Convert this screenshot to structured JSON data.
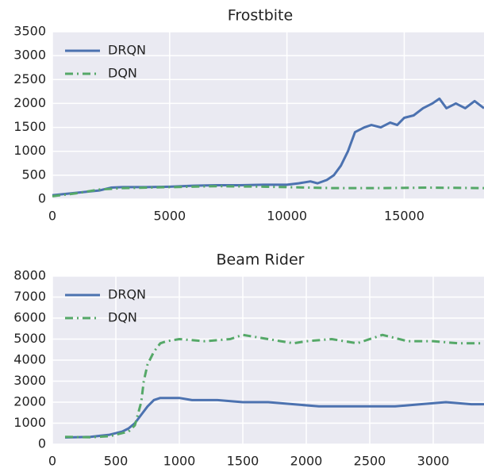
{
  "chart_data": [
    {
      "type": "line",
      "title": "Frostbite",
      "legend": "upper left",
      "grid": true,
      "xlim": [
        0,
        18400
      ],
      "ylim": [
        0,
        3500
      ],
      "xticks": [
        0,
        5000,
        10000,
        15000
      ],
      "yticks": [
        0,
        500,
        1000,
        1500,
        2000,
        2500,
        3000,
        3500
      ],
      "series": [
        {
          "name": "DRQN",
          "color": "#4c72b0",
          "linestyle": "solid",
          "x": [
            0,
            1000,
            2000,
            2500,
            3000,
            4000,
            5000,
            6000,
            7000,
            8000,
            9000,
            10000,
            10500,
            11000,
            11300,
            11700,
            12000,
            12300,
            12600,
            12900,
            13300,
            13600,
            14000,
            14400,
            14700,
            15000,
            15400,
            15800,
            16200,
            16500,
            16800,
            17200,
            17600,
            18000,
            18400
          ],
          "values": [
            80,
            130,
            180,
            240,
            250,
            250,
            260,
            280,
            290,
            290,
            300,
            300,
            330,
            370,
            330,
            400,
            500,
            700,
            1000,
            1400,
            1500,
            1550,
            1500,
            1600,
            1550,
            1700,
            1750,
            1900,
            2000,
            2100,
            1900,
            2000,
            1900,
            2050,
            1900
          ]
        },
        {
          "name": "DQN",
          "color": "#55a868",
          "linestyle": "dash-dot",
          "x": [
            0,
            1000,
            2000,
            3000,
            5000,
            7000,
            9000,
            10000,
            12000,
            14000,
            16000,
            18400
          ],
          "values": [
            60,
            120,
            200,
            230,
            250,
            270,
            260,
            250,
            230,
            230,
            240,
            230
          ]
        }
      ]
    },
    {
      "type": "line",
      "title": "Beam Rider",
      "legend": "upper left",
      "grid": true,
      "xlim": [
        0,
        3400
      ],
      "ylim": [
        0,
        8000
      ],
      "xticks": [
        0,
        500,
        1000,
        1500,
        2000,
        2500,
        3000
      ],
      "yticks": [
        0,
        1000,
        2000,
        3000,
        4000,
        5000,
        6000,
        7000,
        8000
      ],
      "series": [
        {
          "name": "DRQN",
          "color": "#4c72b0",
          "linestyle": "solid",
          "x": [
            100,
            300,
            450,
            550,
            600,
            650,
            700,
            750,
            800,
            850,
            900,
            1000,
            1100,
            1300,
            1500,
            1700,
            1900,
            2100,
            2300,
            2500,
            2700,
            2900,
            3100,
            3300,
            3400
          ],
          "values": [
            320,
            350,
            450,
            600,
            750,
            1000,
            1400,
            1800,
            2100,
            2200,
            2200,
            2200,
            2100,
            2100,
            2000,
            2000,
            1900,
            1800,
            1800,
            1800,
            1800,
            1900,
            2000,
            1900,
            1900
          ]
        },
        {
          "name": "DQN",
          "color": "#55a868",
          "linestyle": "dash-dot",
          "x": [
            100,
            300,
            450,
            600,
            650,
            700,
            720,
            750,
            800,
            850,
            900,
            1000,
            1200,
            1400,
            1500,
            1700,
            1900,
            2000,
            2200,
            2400,
            2600,
            2800,
            3000,
            3200,
            3400
          ],
          "values": [
            350,
            330,
            380,
            600,
            900,
            2000,
            3000,
            3800,
            4400,
            4800,
            4900,
            5000,
            4900,
            5000,
            5200,
            5000,
            4800,
            4900,
            5000,
            4800,
            5200,
            4900,
            4900,
            4800,
            4800
          ]
        }
      ]
    }
  ]
}
